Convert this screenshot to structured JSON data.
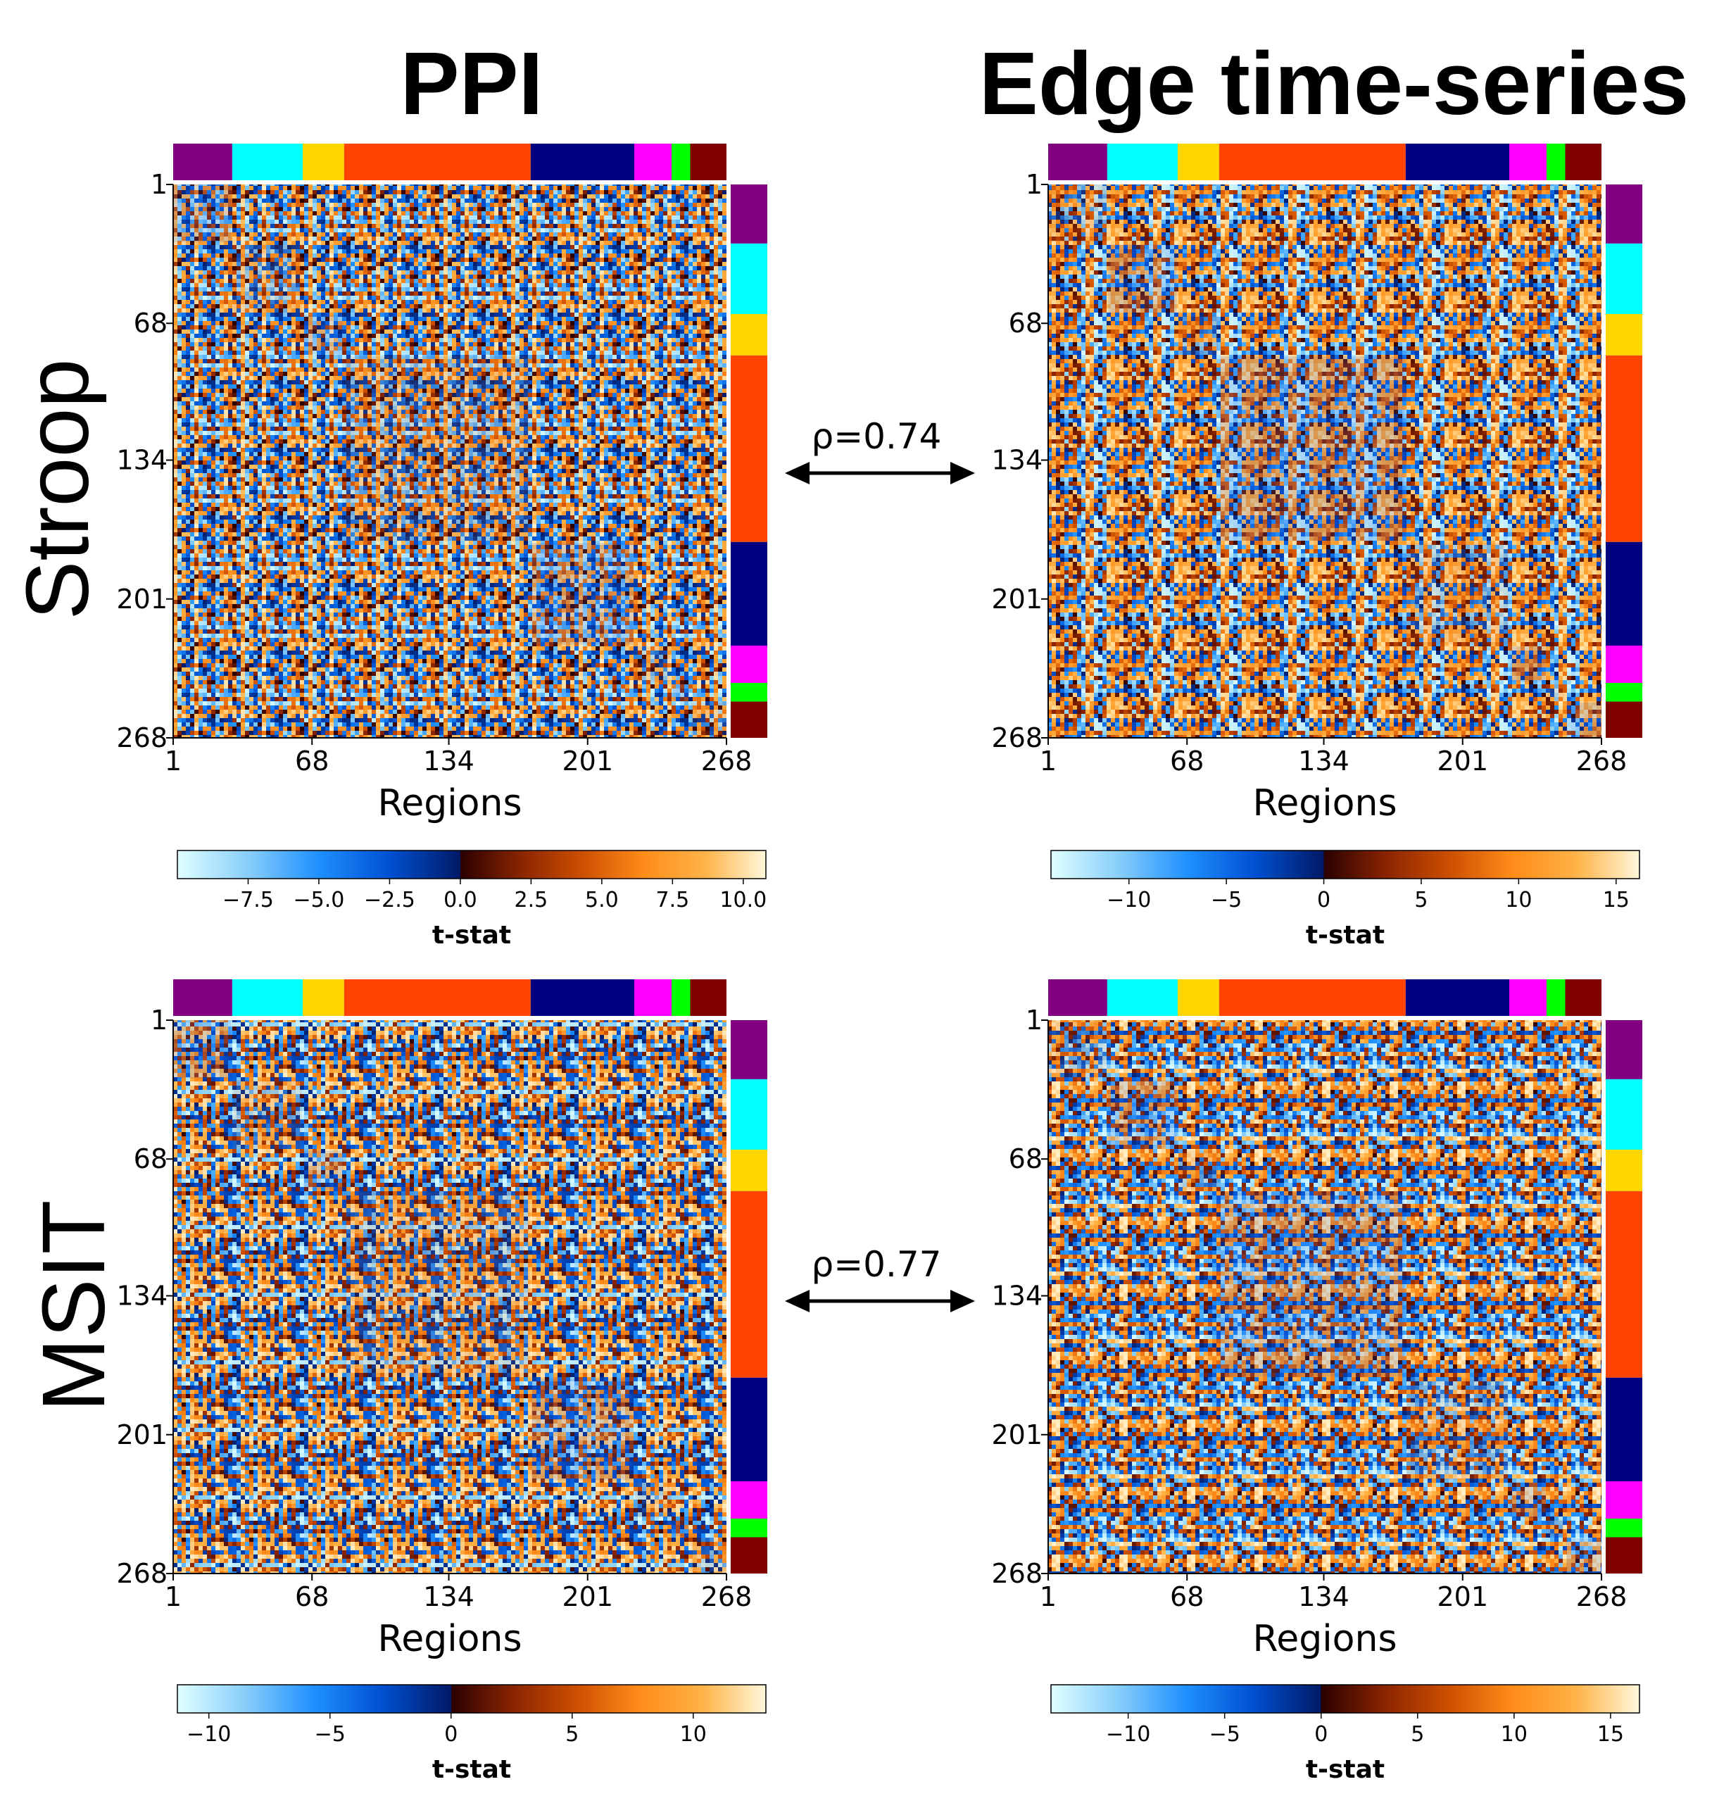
{
  "figure": {
    "column_titles": [
      "PPI",
      "Edge time-series"
    ],
    "row_titles": [
      "Stroop",
      "MSIT"
    ],
    "comparisons": [
      {
        "label": "ρ=0.74",
        "row": 0
      },
      {
        "label": "ρ=0.77",
        "row": 1
      }
    ]
  },
  "chart_data": [
    {
      "type": "heatmap",
      "task": "Stroop",
      "method": "PPI",
      "n_regions": 268,
      "xlabel": "Regions",
      "xticks": [
        "1",
        "68",
        "134",
        "201",
        "268"
      ],
      "yticks": [
        "1",
        "68",
        "134",
        "201",
        "268"
      ],
      "colorbar": {
        "label": "t-stat",
        "range": [
          -10.0,
          10.8
        ],
        "ticks": [
          -7.5,
          -5.0,
          -2.5,
          0.0,
          2.5,
          5.0,
          7.5,
          10.0
        ],
        "tick_labels": [
          "−7.5",
          "−5.0",
          "−2.5",
          "0.0",
          "2.5",
          "5.0",
          "7.5",
          "10.0"
        ]
      }
    },
    {
      "type": "heatmap",
      "task": "Stroop",
      "method": "Edge time-series",
      "n_regions": 268,
      "xlabel": "Regions",
      "xticks": [
        "1",
        "68",
        "134",
        "201",
        "268"
      ],
      "yticks": [
        "1",
        "68",
        "134",
        "201",
        "268"
      ],
      "colorbar": {
        "label": "t-stat",
        "range": [
          -14,
          16.2
        ],
        "ticks": [
          -10,
          -5,
          0,
          5,
          10,
          15
        ],
        "tick_labels": [
          "−10",
          "−5",
          "0",
          "5",
          "10",
          "15"
        ]
      }
    },
    {
      "type": "heatmap",
      "task": "MSIT",
      "method": "PPI",
      "n_regions": 268,
      "xlabel": "Regions",
      "xticks": [
        "1",
        "68",
        "134",
        "201",
        "268"
      ],
      "yticks": [
        "1",
        "68",
        "134",
        "201",
        "268"
      ],
      "colorbar": {
        "label": "t-stat",
        "range": [
          -11.3,
          13
        ],
        "ticks": [
          -10,
          -5,
          0,
          5,
          10
        ],
        "tick_labels": [
          "−10",
          "−5",
          "0",
          "5",
          "10"
        ]
      }
    },
    {
      "type": "heatmap",
      "task": "MSIT",
      "method": "Edge time-series",
      "n_regions": 268,
      "xlabel": "Regions",
      "xticks": [
        "1",
        "68",
        "134",
        "201",
        "268"
      ],
      "yticks": [
        "1",
        "68",
        "134",
        "201",
        "268"
      ],
      "colorbar": {
        "label": "t-stat",
        "range": [
          -14,
          16.5
        ],
        "ticks": [
          -10,
          -5,
          0,
          5,
          10,
          15
        ],
        "tick_labels": [
          "−10",
          "−5",
          "0",
          "5",
          "10",
          "15"
        ]
      }
    }
  ],
  "networks": [
    {
      "start": 1,
      "end": 29,
      "color": "#800080"
    },
    {
      "start": 30,
      "end": 63,
      "color": "#00ffff"
    },
    {
      "start": 64,
      "end": 83,
      "color": "#ffd700"
    },
    {
      "start": 84,
      "end": 173,
      "color": "#ff4500"
    },
    {
      "start": 174,
      "end": 223,
      "color": "#000080"
    },
    {
      "start": 224,
      "end": 241,
      "color": "#ff00ff"
    },
    {
      "start": 242,
      "end": 250,
      "color": "#00ff00"
    },
    {
      "start": 251,
      "end": 268,
      "color": "#800000"
    }
  ],
  "colormap": {
    "negative": [
      "#e0ffff",
      "#87cefa",
      "#1e90ff",
      "#0050d0",
      "#001a66"
    ],
    "positive": [
      "#2a0000",
      "#8b2500",
      "#cd4f00",
      "#ff8c1a",
      "#ffb347",
      "#fff8dc"
    ]
  }
}
